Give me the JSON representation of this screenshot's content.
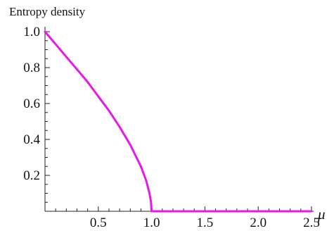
{
  "chart_data": {
    "type": "line",
    "title": "",
    "xlabel": "μ",
    "ylabel": "Entropy density",
    "xlim": [
      0,
      2.5
    ],
    "ylim": [
      0,
      1.0
    ],
    "grid": false,
    "x_ticks": [
      "0.5",
      "1.0",
      "1.5",
      "2.0",
      "2.5"
    ],
    "y_ticks": [
      "0.2",
      "0.4",
      "0.6",
      "0.8",
      "1.0"
    ],
    "series": [
      {
        "color": "#e619e6",
        "x": [
          0,
          0.1,
          0.2,
          0.3,
          0.4,
          0.5,
          0.6,
          0.7,
          0.8,
          0.9,
          0.95,
          0.98,
          0.995,
          1.0,
          1.5,
          2.0,
          2.5
        ],
        "y": [
          1.0,
          0.93,
          0.86,
          0.79,
          0.72,
          0.64,
          0.56,
          0.47,
          0.37,
          0.25,
          0.17,
          0.1,
          0.05,
          0.0,
          0.0,
          0.0,
          0.0
        ]
      }
    ]
  }
}
